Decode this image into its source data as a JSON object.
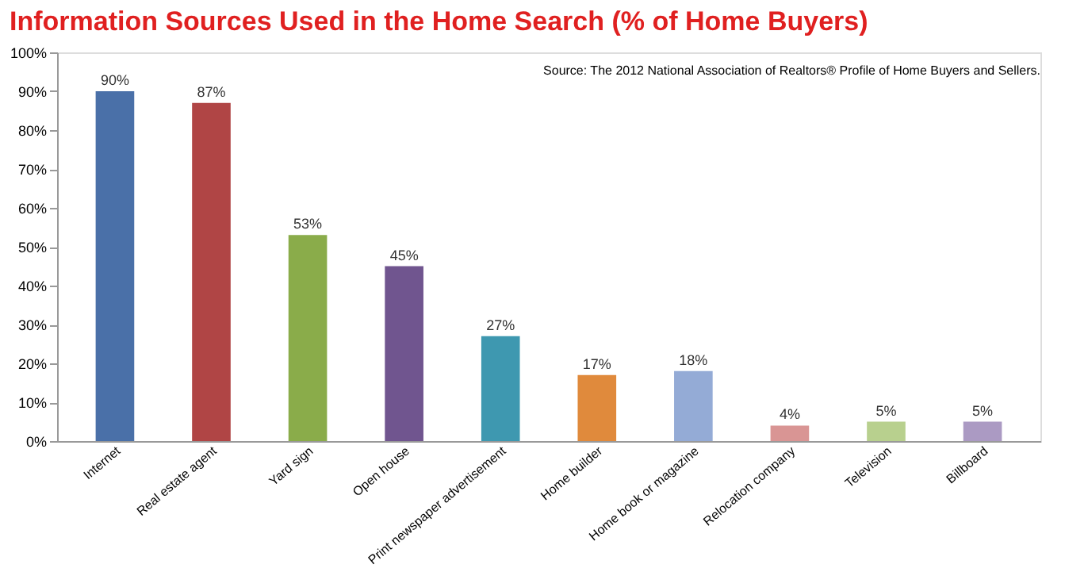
{
  "chart_data": {
    "type": "bar",
    "title": "Information Sources Used in the Home Search (% of Home Buyers)",
    "annotations": [
      "Source:  The 2012 National Association of Realtors® Profile of Home Buyers and Sellers."
    ],
    "categories": [
      "Internet",
      "Real estate agent",
      "Yard sign",
      "Open house",
      "Print newspaper advertisement",
      "Home builder",
      "Home book or magazine",
      "Relocation company",
      "Television",
      "Billboard"
    ],
    "values": [
      90,
      87,
      53,
      45,
      27,
      17,
      18,
      4,
      5,
      5
    ],
    "value_labels": [
      "90%",
      "87%",
      "53%",
      "45%",
      "27%",
      "17%",
      "18%",
      "4%",
      "5%",
      "5%"
    ],
    "colors": [
      "#4a70a8",
      "#b04545",
      "#8aac4a",
      "#70558f",
      "#3e98b0",
      "#e08a3c",
      "#94abd6",
      "#d99594",
      "#b8d08e",
      "#ab9ac3"
    ],
    "ylim": [
      0,
      100
    ],
    "yticks": [
      {
        "value": 0,
        "label": "0%"
      },
      {
        "value": 10,
        "label": "10%"
      },
      {
        "value": 20,
        "label": "20%"
      },
      {
        "value": 30,
        "label": "30%"
      },
      {
        "value": 40,
        "label": "40%"
      },
      {
        "value": 50,
        "label": "50%"
      },
      {
        "value": 60,
        "label": "60%"
      },
      {
        "value": 70,
        "label": "70%"
      },
      {
        "value": 80,
        "label": "80%"
      },
      {
        "value": 90,
        "label": "90%"
      },
      {
        "value": 100,
        "label": "100%"
      }
    ],
    "grid": false
  }
}
